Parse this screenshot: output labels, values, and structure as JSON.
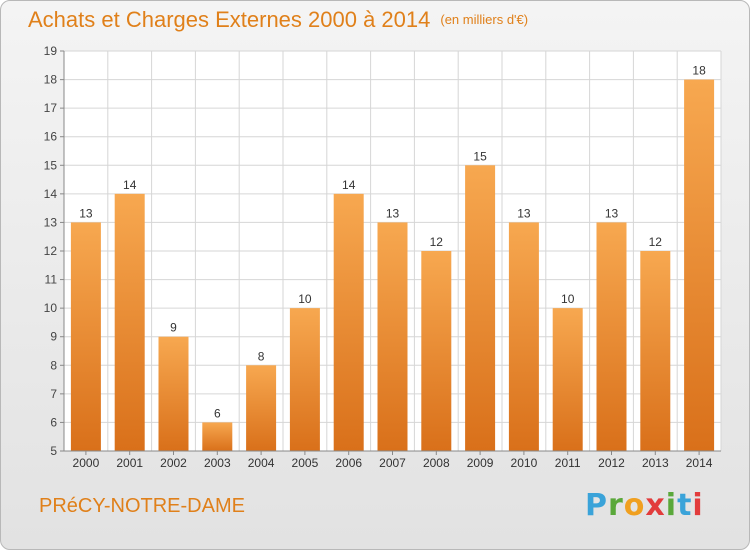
{
  "header": {
    "title": "Achats et Charges Externes 2000 à 2014",
    "unit": "(en milliers d'€)"
  },
  "commune": "PRéCY-NOTRE-DAME",
  "logo": {
    "letters": [
      "P",
      "r",
      "o",
      "x",
      "i",
      "t",
      "i"
    ],
    "colors": [
      "#3aa3d9",
      "#5aa83a",
      "#f0a020",
      "#e23c3c",
      "#5aa83a",
      "#3aa3d9",
      "#e23c3c"
    ]
  },
  "colors": {
    "bar_light": "#f7a850",
    "bar_dark": "#d9701a",
    "accent": "#e0801a"
  },
  "chart_data": {
    "type": "bar",
    "title": "Achats et Charges Externes 2000 à 2014",
    "subtitle": "(en milliers d'€)",
    "categories": [
      "2000",
      "2001",
      "2002",
      "2003",
      "2004",
      "2005",
      "2006",
      "2007",
      "2008",
      "2009",
      "2010",
      "2011",
      "2012",
      "2013",
      "2014"
    ],
    "values": [
      13,
      14,
      9,
      6,
      8,
      10,
      14,
      13,
      12,
      15,
      13,
      10,
      13,
      12,
      18
    ],
    "ylim": [
      5,
      19
    ],
    "yticks": [
      5,
      6,
      7,
      8,
      9,
      10,
      11,
      12,
      13,
      14,
      15,
      16,
      17,
      18,
      19
    ],
    "grid": true
  }
}
